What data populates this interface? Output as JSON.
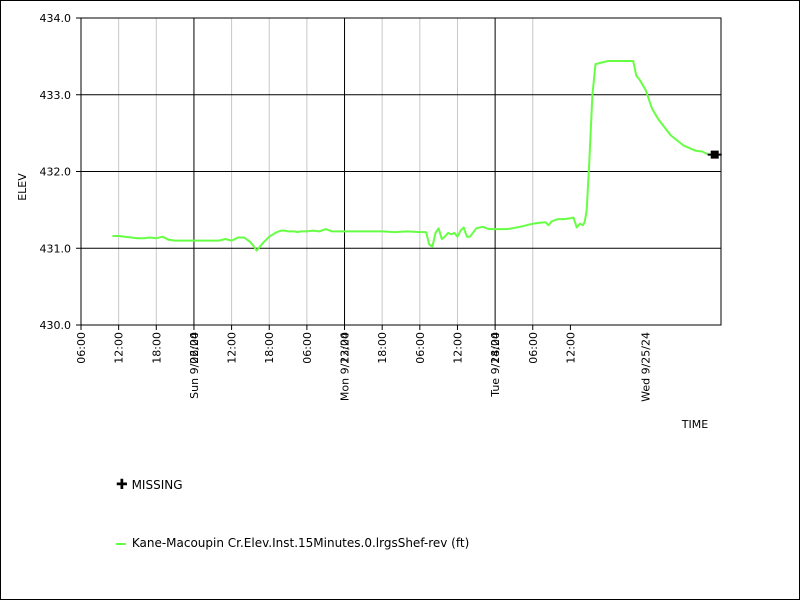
{
  "chart_data": {
    "type": "line",
    "xlabel": "TIME",
    "ylabel": "ELEV",
    "ylim": [
      430.0,
      434.0
    ],
    "yticks": [
      "430.0",
      "431.0",
      "432.0",
      "433.0",
      "434.0"
    ],
    "xlim_hours": [
      0,
      102
    ],
    "xticks": [
      "06:00",
      "12:00",
      "18:00",
      "06:00",
      "12:00",
      "18:00",
      "06:00",
      "12:00",
      "18:00",
      "06:00",
      "12:00",
      "18:00",
      "06:00",
      "12:00"
    ],
    "day_labels": [
      "Sun 9/22/24",
      "Mon 9/23/24",
      "Tue 9/24/24",
      "Wed 9/25/24"
    ],
    "grid": true,
    "series": [
      {
        "name": "Kane-Macoupin Cr.Elev.Inst.15Minutes.0.lrgsShef-rev (ft)",
        "color": "#66ff44",
        "x": [
          5.0,
          6.0,
          7.0,
          8.0,
          9.0,
          10.0,
          11.0,
          12.0,
          13.0,
          14.0,
          15.0,
          16.0,
          17.0,
          17.5,
          18.0,
          19.0,
          20.0,
          21.0,
          22.0,
          23.0,
          24.0,
          25.0,
          26.0,
          26.5,
          27.0,
          27.5,
          28.0,
          29.0,
          30.0,
          31.0,
          31.5,
          32.0,
          32.5,
          33.0,
          33.5,
          34.0,
          34.5,
          35.0,
          36.0,
          37.0,
          38.0,
          39.0,
          40.0,
          42.0,
          44.0,
          46.0,
          48.0,
          50.0,
          52.0,
          54.0,
          55.0,
          55.5,
          56.0,
          56.5,
          57.0,
          57.5,
          58.0,
          58.5,
          59.0,
          59.5,
          60.0,
          60.5,
          61.0,
          61.5,
          62.0,
          63.0,
          64.0,
          65.0,
          66.0,
          68.0,
          70.0,
          72.0,
          73.0,
          74.0,
          74.5,
          75.0,
          76.0,
          77.0,
          78.0,
          78.5,
          79.0,
          79.5,
          80.0,
          80.3,
          80.6,
          81.0,
          81.5,
          82.0,
          84.0,
          86.0,
          87.0,
          87.5,
          88.0,
          88.5,
          89.0,
          90.0,
          91.0,
          92.0,
          94.0,
          96.0,
          98.0,
          99.0,
          100.0,
          101.0
        ],
        "y": [
          431.16,
          431.16,
          431.15,
          431.14,
          431.13,
          431.13,
          431.14,
          431.13,
          431.15,
          431.11,
          431.1,
          431.1,
          431.1,
          431.1,
          431.1,
          431.1,
          431.1,
          431.1,
          431.1,
          431.12,
          431.1,
          431.14,
          431.14,
          431.11,
          431.08,
          431.03,
          430.97,
          431.07,
          431.15,
          431.2,
          431.22,
          431.23,
          431.23,
          431.22,
          431.22,
          431.22,
          431.21,
          431.22,
          431.22,
          431.23,
          431.22,
          431.25,
          431.22,
          431.22,
          431.22,
          431.22,
          431.22,
          431.21,
          431.22,
          431.21,
          431.21,
          431.05,
          431.02,
          431.2,
          431.26,
          431.12,
          431.15,
          431.2,
          431.18,
          431.2,
          431.15,
          431.23,
          431.27,
          431.15,
          431.15,
          431.26,
          431.28,
          431.25,
          431.25,
          431.25,
          431.28,
          431.32,
          431.33,
          431.34,
          431.3,
          431.35,
          431.38,
          431.38,
          431.39,
          431.4,
          431.27,
          431.32,
          431.3,
          431.35,
          431.5,
          432.1,
          433.0,
          433.4,
          433.44,
          433.44,
          433.44,
          433.44,
          433.44,
          433.25,
          433.2,
          433.06,
          432.82,
          432.68,
          432.47,
          432.34,
          432.27,
          432.26,
          432.22,
          432.22
        ]
      }
    ],
    "missing": {
      "label": "MISSING",
      "x": [
        101.0
      ],
      "y": [
        432.22
      ]
    }
  }
}
